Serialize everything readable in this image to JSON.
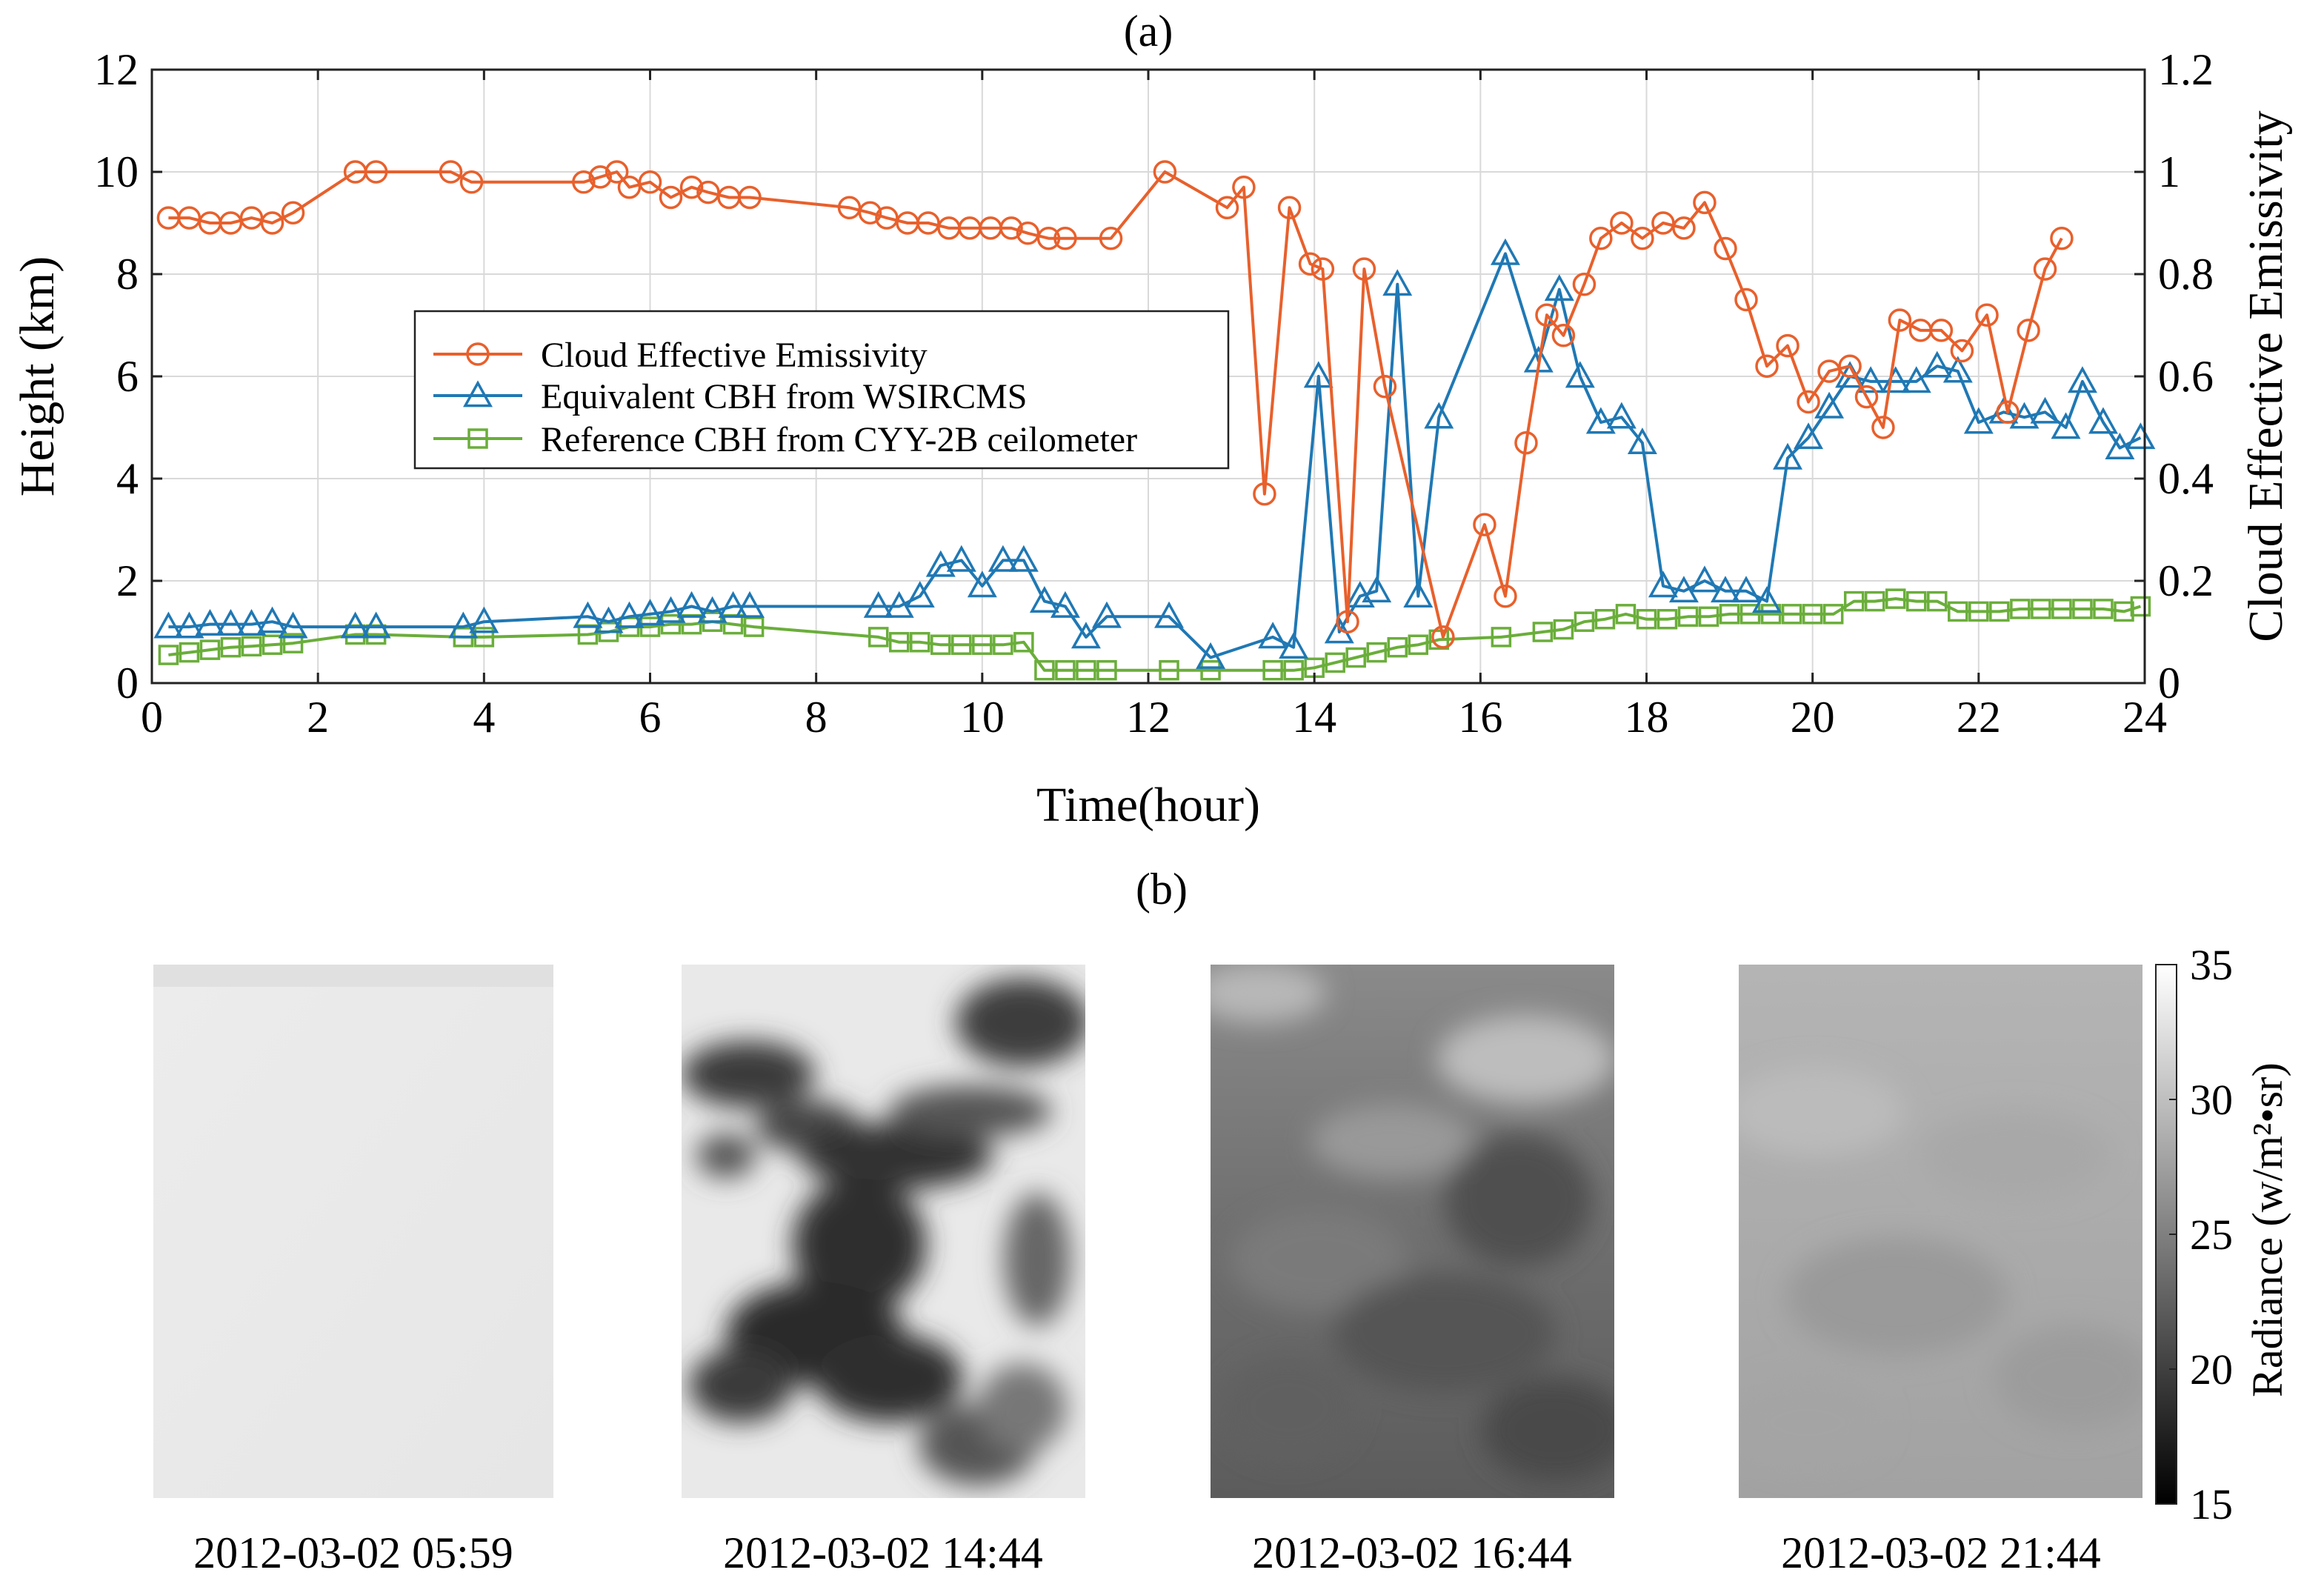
{
  "panel_a_label": "(a)",
  "panel_b_label": "(b)",
  "colors": {
    "emissivity": "#E8602C",
    "wsircms": "#1F78B4",
    "ceilometer": "#6AAE3A",
    "grid": "#d9d9d9",
    "axis": "#222222"
  },
  "chart_data": {
    "type": "line",
    "title": "(a)",
    "xlabel": "Time(hour)",
    "ylabel": "Height (km)",
    "y2label": "Cloud Effective Emissivity",
    "xlim": [
      0,
      24
    ],
    "ylim": [
      0,
      12
    ],
    "y2lim": [
      0,
      1.2
    ],
    "xticks": [
      0,
      2,
      4,
      6,
      8,
      10,
      12,
      14,
      16,
      18,
      20,
      22,
      24
    ],
    "yticks": [
      0,
      2,
      4,
      6,
      8,
      10,
      12
    ],
    "y2ticks": [
      "0",
      "0.2",
      "0.4",
      "0.6",
      "0.8",
      "1",
      "1.2"
    ],
    "grid": true,
    "legend_position": "center-left",
    "series": [
      {
        "name": "Cloud Effective Emissivity",
        "axis": "right",
        "marker": "circle",
        "x": [
          0.2,
          0.45,
          0.7,
          0.95,
          1.2,
          1.45,
          1.7,
          2.45,
          2.7,
          3.6,
          3.85,
          5.2,
          5.4,
          5.6,
          5.75,
          6.0,
          6.25,
          6.5,
          6.7,
          6.95,
          7.2,
          8.4,
          8.65,
          8.85,
          9.1,
          9.35,
          9.6,
          9.85,
          10.1,
          10.35,
          10.55,
          10.8,
          11.0,
          11.55,
          12.2,
          12.95,
          13.15,
          13.4,
          13.7,
          13.95,
          14.1,
          14.4,
          14.6,
          14.85,
          15.55,
          16.05,
          16.3,
          16.55,
          16.8,
          17.0,
          17.25,
          17.45,
          17.7,
          17.95,
          18.2,
          18.45,
          18.7,
          18.95,
          19.2,
          19.45,
          19.7,
          19.95,
          20.2,
          20.45,
          20.65,
          20.85,
          21.05,
          21.3,
          21.55,
          21.8,
          22.1,
          22.35,
          22.6,
          22.8,
          23.0
        ],
        "values": [
          0.91,
          0.91,
          0.9,
          0.9,
          0.91,
          0.9,
          0.92,
          1.0,
          1.0,
          1.0,
          0.98,
          0.98,
          0.99,
          1.0,
          0.97,
          0.98,
          0.95,
          0.97,
          0.96,
          0.95,
          0.95,
          0.93,
          0.92,
          0.91,
          0.9,
          0.9,
          0.89,
          0.89,
          0.89,
          0.89,
          0.88,
          0.87,
          0.87,
          0.87,
          1.0,
          0.93,
          0.97,
          0.37,
          0.93,
          0.82,
          0.81,
          0.12,
          0.81,
          0.58,
          0.09,
          0.31,
          0.17,
          0.47,
          0.72,
          0.68,
          0.78,
          0.87,
          0.9,
          0.87,
          0.9,
          0.89,
          0.94,
          0.85,
          0.75,
          0.62,
          0.66,
          0.55,
          0.61,
          0.62,
          0.56,
          0.5,
          0.71,
          0.69,
          0.69,
          0.65,
          0.72,
          0.53,
          0.69,
          0.81,
          0.87
        ]
      },
      {
        "name": "Equivalent CBH from WSIRCMS",
        "axis": "left",
        "marker": "triangle",
        "x": [
          0.2,
          0.45,
          0.7,
          0.95,
          1.2,
          1.45,
          1.7,
          2.45,
          2.7,
          3.75,
          4.0,
          5.25,
          5.5,
          5.75,
          6.0,
          6.25,
          6.5,
          6.75,
          7.0,
          7.2,
          8.75,
          9.0,
          9.25,
          9.5,
          9.75,
          10.0,
          10.25,
          10.5,
          10.75,
          11.0,
          11.25,
          11.5,
          12.25,
          12.75,
          13.5,
          13.75,
          14.05,
          14.3,
          14.55,
          14.75,
          15.0,
          15.25,
          15.5,
          16.3,
          16.7,
          16.95,
          17.2,
          17.45,
          17.7,
          17.95,
          18.2,
          18.45,
          18.7,
          18.95,
          19.2,
          19.45,
          19.7,
          19.95,
          20.2,
          20.45,
          20.7,
          21.0,
          21.25,
          21.5,
          21.75,
          22.0,
          22.3,
          22.55,
          22.8,
          23.05,
          23.25,
          23.5,
          23.7,
          23.95
        ],
        "values": [
          1.1,
          1.1,
          1.15,
          1.15,
          1.15,
          1.2,
          1.1,
          1.1,
          1.1,
          1.1,
          1.2,
          1.3,
          1.2,
          1.3,
          1.35,
          1.4,
          1.5,
          1.4,
          1.5,
          1.5,
          1.5,
          1.5,
          1.7,
          2.3,
          2.4,
          1.9,
          2.4,
          2.4,
          1.6,
          1.5,
          0.9,
          1.3,
          1.3,
          0.5,
          0.9,
          0.7,
          6.0,
          1.0,
          1.7,
          1.8,
          7.8,
          1.7,
          5.2,
          8.4,
          6.3,
          7.7,
          6.0,
          5.1,
          5.2,
          4.7,
          1.9,
          1.8,
          2.0,
          1.8,
          1.8,
          1.6,
          4.4,
          4.8,
          5.4,
          6.0,
          5.9,
          5.9,
          5.9,
          6.2,
          6.1,
          5.1,
          5.3,
          5.2,
          5.3,
          5.0,
          5.9,
          5.1,
          4.6,
          4.8
        ]
      },
      {
        "name": "Reference CBH from CYY-2B ceilometer",
        "axis": "left",
        "marker": "square",
        "x": [
          0.2,
          0.45,
          0.7,
          0.95,
          1.2,
          1.45,
          1.7,
          2.45,
          2.7,
          3.75,
          4.0,
          5.25,
          5.5,
          5.75,
          6.0,
          6.25,
          6.5,
          6.75,
          7.0,
          7.25,
          8.75,
          9.0,
          9.25,
          9.5,
          9.75,
          10.0,
          10.25,
          10.5,
          10.75,
          11.0,
          11.25,
          11.5,
          12.25,
          12.75,
          13.5,
          13.75,
          14.0,
          14.25,
          14.5,
          14.75,
          15.0,
          15.25,
          15.5,
          16.25,
          16.75,
          17.0,
          17.25,
          17.5,
          17.75,
          18.0,
          18.25,
          18.5,
          18.75,
          19.0,
          19.25,
          19.5,
          19.75,
          20.0,
          20.25,
          20.5,
          20.75,
          21.0,
          21.25,
          21.5,
          21.75,
          22.0,
          22.25,
          22.5,
          22.75,
          23.0,
          23.25,
          23.5,
          23.75,
          23.95
        ],
        "values": [
          0.55,
          0.6,
          0.65,
          0.7,
          0.72,
          0.75,
          0.78,
          0.95,
          0.95,
          0.9,
          0.9,
          0.95,
          1.0,
          1.1,
          1.1,
          1.15,
          1.15,
          1.2,
          1.15,
          1.1,
          0.9,
          0.8,
          0.8,
          0.75,
          0.75,
          0.75,
          0.75,
          0.8,
          0.25,
          0.25,
          0.25,
          0.25,
          0.25,
          0.25,
          0.25,
          0.25,
          0.3,
          0.4,
          0.5,
          0.6,
          0.7,
          0.75,
          0.85,
          0.9,
          1.0,
          1.05,
          1.2,
          1.25,
          1.35,
          1.25,
          1.25,
          1.3,
          1.3,
          1.35,
          1.35,
          1.35,
          1.35,
          1.35,
          1.35,
          1.6,
          1.6,
          1.65,
          1.6,
          1.6,
          1.4,
          1.4,
          1.4,
          1.45,
          1.45,
          1.45,
          1.45,
          1.45,
          1.4,
          1.5
        ]
      }
    ]
  },
  "colorbar": {
    "label": "Radiance (w/m²•sr)",
    "ticks": [
      "35",
      "30",
      "25",
      "20",
      "15"
    ],
    "min": 15,
    "max": 35
  },
  "images": [
    {
      "caption": "2012-03-02 05:59"
    },
    {
      "caption": "2012-03-02 14:44"
    },
    {
      "caption": "2012-03-02 16:44"
    },
    {
      "caption": "2012-03-02 21:44"
    }
  ]
}
